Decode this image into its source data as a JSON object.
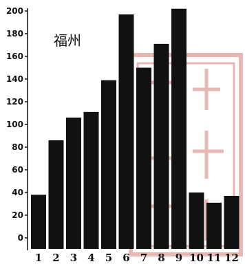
{
  "chart_data": {
    "type": "bar",
    "title": "福州",
    "xlabel": "",
    "ylabel": "",
    "categories": [
      "1",
      "2",
      "3",
      "4",
      "5",
      "6",
      "7",
      "8",
      "9",
      "10",
      "11",
      "12"
    ],
    "values": [
      38,
      86,
      106,
      111,
      139,
      197,
      150,
      171,
      202,
      40,
      31,
      37
    ],
    "ylim": [
      0,
      200
    ],
    "yticks": [
      "0",
      "20",
      "40",
      "60",
      "80",
      "100",
      "120",
      "140",
      "160",
      "180",
      "200"
    ],
    "grid": false,
    "colors": {
      "bar": "#111111",
      "axis": "#111111",
      "stamp": "#c0392b"
    }
  }
}
